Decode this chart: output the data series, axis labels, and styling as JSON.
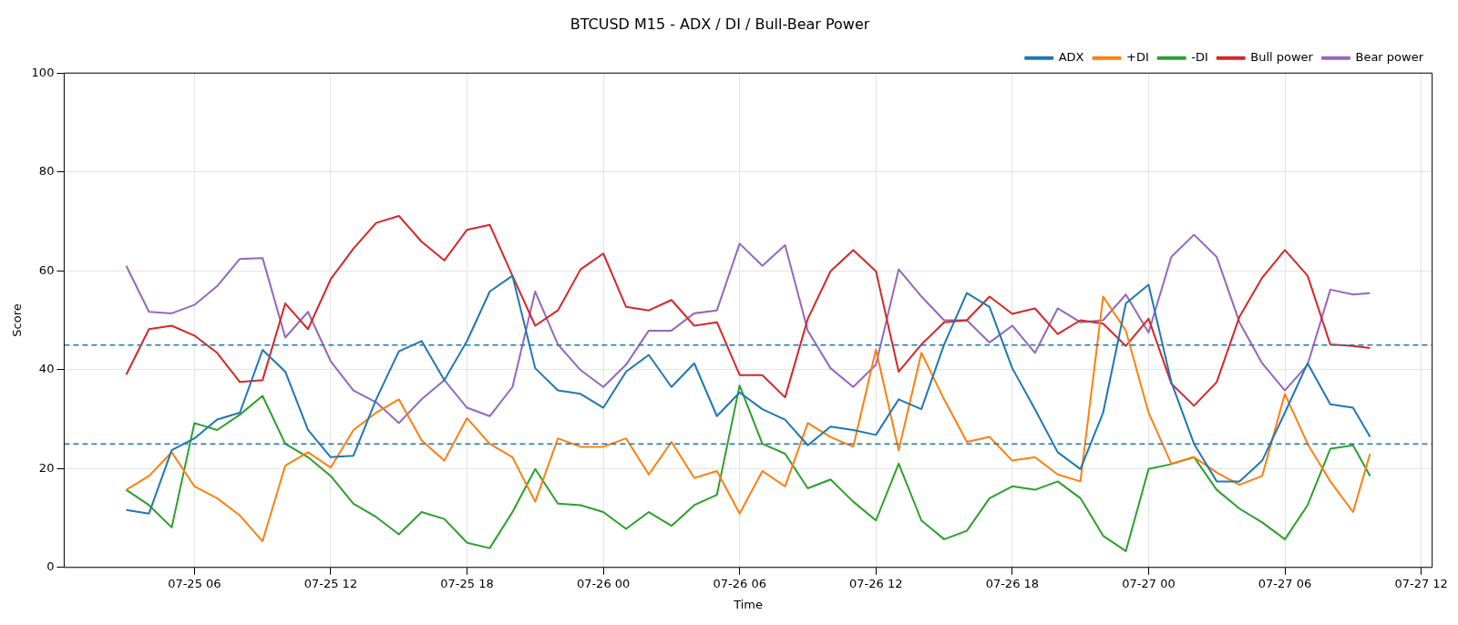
{
  "chart_data": {
    "type": "line",
    "title": "BTCUSD M15 - ADX / DI / Bull-Bear Power",
    "xlabel": "Time",
    "ylabel": "Score",
    "x": [
      "--07-25T03:00",
      "--07-25T04:00",
      "--07-25T05:00",
      "--07-25T06:00",
      "--07-25T07:00",
      "--07-25T08:00",
      "--07-25T09:00",
      "--07-25T10:00",
      "--07-25T11:00",
      "--07-25T12:00",
      "--07-25T13:00",
      "--07-25T14:00",
      "--07-25T15:00",
      "--07-25T16:00",
      "--07-25T17:00",
      "--07-25T18:00",
      "--07-25T19:00",
      "--07-25T20:00",
      "--07-25T21:00",
      "--07-25T22:00",
      "--07-25T23:00",
      "--07-26T00:00",
      "--07-26T01:00",
      "--07-26T02:00",
      "--07-26T03:00",
      "--07-26T04:00",
      "--07-26T05:00",
      "--07-26T06:00",
      "--07-26T07:00",
      "--07-26T08:00",
      "--07-26T09:00",
      "--07-26T10:00",
      "--07-26T11:00",
      "--07-26T12:00",
      "--07-26T13:00",
      "--07-26T14:00",
      "--07-26T15:00",
      "--07-26T16:00",
      "--07-26T17:00",
      "--07-26T18:00",
      "--07-26T19:00",
      "--07-26T20:00",
      "--07-26T21:00",
      "--07-26T22:00",
      "--07-26T23:00",
      "--07-27T00:00",
      "--07-27T01:00",
      "--07-27T02:00",
      "--07-27T03:00",
      "--07-27T04:00",
      "--07-27T05:00",
      "--07-27T06:00",
      "--07-27T07:00",
      "--07-27T08:00",
      "--07-27T09:00",
      "--07-27T09:45"
    ],
    "series": [
      {
        "name": "ADX",
        "color": "#1f77b4",
        "values": [
          11.6,
          10.9,
          23.7,
          26.1,
          29.9,
          31.3,
          44,
          39.6,
          27.8,
          22.3,
          22.6,
          34,
          43.7,
          45.8,
          37.9,
          45.8,
          55.8,
          59,
          40.3,
          35.8,
          35.1,
          32.3,
          39.6,
          43,
          36.5,
          41.3,
          30.6,
          35.4,
          32,
          29.9,
          24.7,
          28.5,
          27.8,
          26.8,
          34,
          32,
          45.1,
          55.5,
          52.7,
          40.3,
          32,
          23.3,
          19.9,
          31.3,
          53.4,
          57.2,
          37.5,
          25,
          17.4,
          17.4,
          21.6,
          31.3,
          41.3,
          33,
          32.3,
          26.4
        ]
      },
      {
        "name": "+DI",
        "color": "#ff7f0e",
        "values": [
          15.7,
          18.5,
          23.3,
          16.4,
          14,
          10.5,
          5.3,
          20.6,
          23.3,
          20.2,
          27.8,
          31.3,
          34,
          25.7,
          21.6,
          30.2,
          25,
          22.3,
          13.3,
          26.1,
          24.4,
          24.4,
          26.1,
          18.8,
          25.4,
          18.1,
          19.5,
          10.9,
          19.5,
          16.4,
          29.2,
          26.4,
          24.4,
          44.1,
          23.7,
          43.4,
          34,
          25.4,
          26.4,
          21.6,
          22.3,
          18.8,
          17.4,
          54.8,
          47.9,
          31.3,
          21,
          22.3,
          19.2,
          16.7,
          18.5,
          35.1,
          25,
          17.4,
          11.2,
          23
        ]
      },
      {
        "name": "-DI",
        "color": "#2ca02c",
        "values": [
          15.7,
          12.6,
          8.1,
          29.2,
          27.8,
          30.9,
          34.7,
          25,
          22.3,
          18.5,
          12.9,
          10.2,
          6.7,
          11.2,
          9.8,
          5,
          3.9,
          11.2,
          19.9,
          12.9,
          12.6,
          11.2,
          7.8,
          11.2,
          8.4,
          12.6,
          14.7,
          36.8,
          25,
          23,
          16,
          17.8,
          13.3,
          9.5,
          21,
          9.5,
          5.7,
          7.4,
          14,
          16.4,
          15.7,
          17.4,
          14,
          6.4,
          3.3,
          19.9,
          20.9,
          22.3,
          15.7,
          11.9,
          9.1,
          5.7,
          12.6,
          24,
          24.7,
          18.5
        ]
      },
      {
        "name": "Bull power",
        "color": "#d62728",
        "values": [
          39,
          48.2,
          48.9,
          46.9,
          43.4,
          37.5,
          37.9,
          53.4,
          48.2,
          58.3,
          64.5,
          69.7,
          71.1,
          65.9,
          62.1,
          68.3,
          69.3,
          59,
          48.9,
          52,
          60.3,
          63.5,
          52.7,
          52,
          54.1,
          48.9,
          49.6,
          38.9,
          38.9,
          34.4,
          50.3,
          59.9,
          64.2,
          59.9,
          39.6,
          45.1,
          49.6,
          50,
          54.8,
          51.3,
          52.4,
          47.2,
          50,
          49.3,
          44.8,
          50.3,
          37.2,
          32.7,
          37.5,
          50.7,
          58.6,
          64.2,
          59,
          45.1,
          44.8,
          44.4
        ]
      },
      {
        "name": "Bear power",
        "color": "#9467bd",
        "values": [
          61,
          51.7,
          51.4,
          53.1,
          56.9,
          62.4,
          62.6,
          46.5,
          51.7,
          41.7,
          35.8,
          33.4,
          29.2,
          34,
          37.9,
          32.3,
          30.6,
          36.5,
          55.8,
          45.1,
          39.9,
          36.5,
          41,
          47.9,
          47.9,
          51.4,
          52,
          65.5,
          61,
          65.2,
          47.9,
          40.3,
          36.5,
          41,
          60.3,
          54.8,
          50,
          50,
          45.5,
          48.9,
          43.4,
          52.4,
          49.6,
          50,
          55.2,
          47.5,
          62.8,
          67.3,
          62.8,
          49.6,
          41.3,
          35.8,
          41,
          56.2,
          55.2,
          55.5
        ]
      }
    ],
    "xlim": [
      "--07-25T00:16",
      "--07-27T12:29"
    ],
    "xticks": [
      {
        "value": "--07-25T06:00",
        "label": "07-25 06"
      },
      {
        "value": "--07-25T12:00",
        "label": "07-25 12"
      },
      {
        "value": "--07-25T18:00",
        "label": "07-25 18"
      },
      {
        "value": "--07-26T00:00",
        "label": "07-26 00"
      },
      {
        "value": "--07-26T06:00",
        "label": "07-26 06"
      },
      {
        "value": "--07-26T12:00",
        "label": "07-26 12"
      },
      {
        "value": "--07-26T18:00",
        "label": "07-26 18"
      },
      {
        "value": "--07-27T00:00",
        "label": "07-27 00"
      },
      {
        "value": "--07-27T06:00",
        "label": "07-27 06"
      },
      {
        "value": "--07-27T12:00",
        "label": "07-27 12"
      }
    ],
    "ylim": [
      0,
      100
    ],
    "yticks": [
      0,
      20,
      40,
      60,
      80,
      100
    ],
    "ref_lines": [
      {
        "axis": "y",
        "value": 45,
        "color": "#1f77b4",
        "line_style": "dashed"
      },
      {
        "axis": "y",
        "value": 25,
        "color": "#1f77b4",
        "line_style": "dashed"
      }
    ],
    "grid": true,
    "legend": "top right"
  }
}
